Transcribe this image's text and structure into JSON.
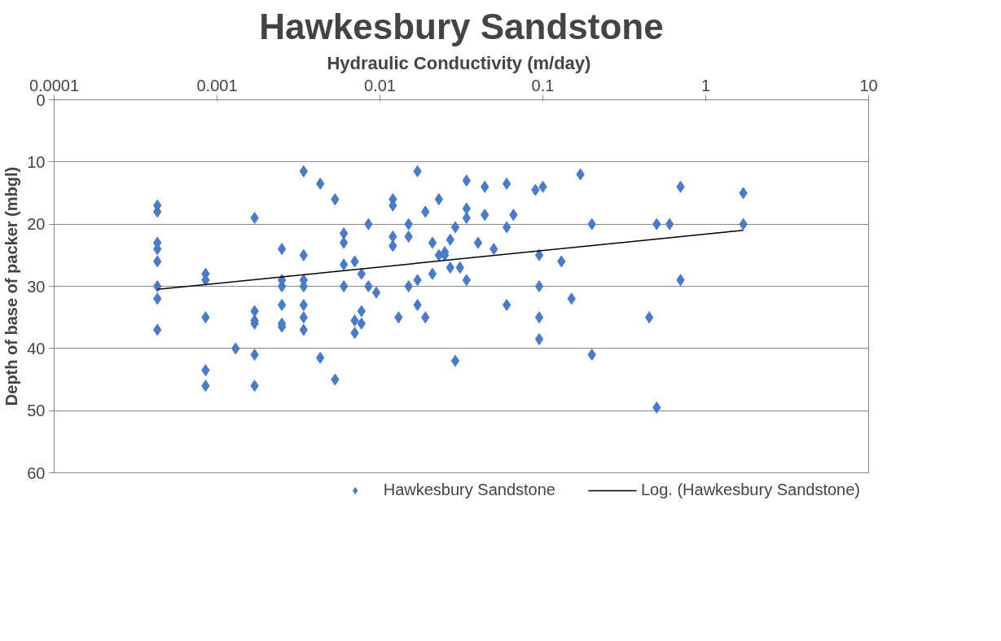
{
  "chart_data": {
    "type": "scatter",
    "title": "Hawkesbury Sandstone",
    "xlabel": "Hydraulic Conductivity  (m/day)",
    "ylabel": "Depth of base of packer (mbgl)",
    "log": "x",
    "xlim": [
      0.0001,
      10
    ],
    "xticks": [
      0.0001,
      0.001,
      0.01,
      0.1,
      1,
      10
    ],
    "ylim": [
      60,
      0
    ],
    "yticks": [
      0,
      10,
      20,
      30,
      40,
      50,
      60
    ],
    "grid": "y",
    "legend": "bottom",
    "marker": "diamond",
    "series": [
      {
        "name": "Hawkesbury Sandstone",
        "color": "#4a7bc8",
        "x": [
          0.00043,
          0.00043,
          0.00043,
          0.00043,
          0.00043,
          0.00043,
          0.00043,
          0.00043,
          0.00085,
          0.00085,
          0.00085,
          0.00085,
          0.00085,
          0.0013,
          0.0017,
          0.0017,
          0.0017,
          0.0017,
          0.0017,
          0.0017,
          0.0025,
          0.0025,
          0.0025,
          0.0025,
          0.0025,
          0.0025,
          0.0034,
          0.0034,
          0.0034,
          0.0034,
          0.0034,
          0.0034,
          0.0034,
          0.0043,
          0.0043,
          0.0053,
          0.0053,
          0.006,
          0.006,
          0.006,
          0.006,
          0.007,
          0.007,
          0.007,
          0.0077,
          0.0077,
          0.0077,
          0.0085,
          0.0085,
          0.0095,
          0.012,
          0.012,
          0.012,
          0.012,
          0.013,
          0.015,
          0.015,
          0.015,
          0.017,
          0.017,
          0.017,
          0.019,
          0.019,
          0.021,
          0.021,
          0.023,
          0.023,
          0.025,
          0.025,
          0.027,
          0.027,
          0.029,
          0.029,
          0.031,
          0.034,
          0.034,
          0.034,
          0.034,
          0.04,
          0.044,
          0.044,
          0.05,
          0.06,
          0.06,
          0.06,
          0.066,
          0.09,
          0.095,
          0.095,
          0.095,
          0.095,
          0.1,
          0.13,
          0.15,
          0.17,
          0.2,
          0.2,
          0.45,
          0.5,
          0.5,
          0.6,
          0.7,
          0.7,
          1.7,
          1.7
        ],
        "values": [
          17,
          18,
          23,
          24,
          26,
          30,
          32,
          37,
          28,
          29,
          35,
          43.5,
          46,
          40,
          19,
          34,
          35.5,
          36,
          41,
          46,
          24,
          29,
          30,
          33,
          36,
          36.5,
          11.5,
          25,
          29,
          30,
          33,
          35,
          37,
          13.5,
          41.5,
          16,
          45,
          21.5,
          23,
          26.5,
          30,
          26,
          35.5,
          37.5,
          28,
          34,
          36,
          20,
          30,
          31,
          16,
          17,
          22,
          23.5,
          35,
          20,
          22,
          30,
          11.5,
          29,
          33,
          18,
          35,
          23,
          28,
          16,
          25,
          24.5,
          25,
          22.5,
          27,
          42,
          20.5,
          27,
          13,
          17.5,
          19,
          29,
          23,
          14,
          18.5,
          24,
          13.5,
          20.5,
          33,
          18.5,
          14.5,
          25,
          30,
          35,
          38.5,
          14,
          26,
          32,
          12,
          41,
          20,
          35,
          20,
          49.5,
          20,
          14,
          29,
          15,
          20
        ]
      },
      {
        "name": "Log. (Hawkesbury Sandstone)",
        "type": "line",
        "color": "#000000",
        "line_style": "solid",
        "marker": "none",
        "x": [
          0.00043,
          1.7
        ],
        "values": [
          30.5,
          21
        ]
      }
    ]
  }
}
